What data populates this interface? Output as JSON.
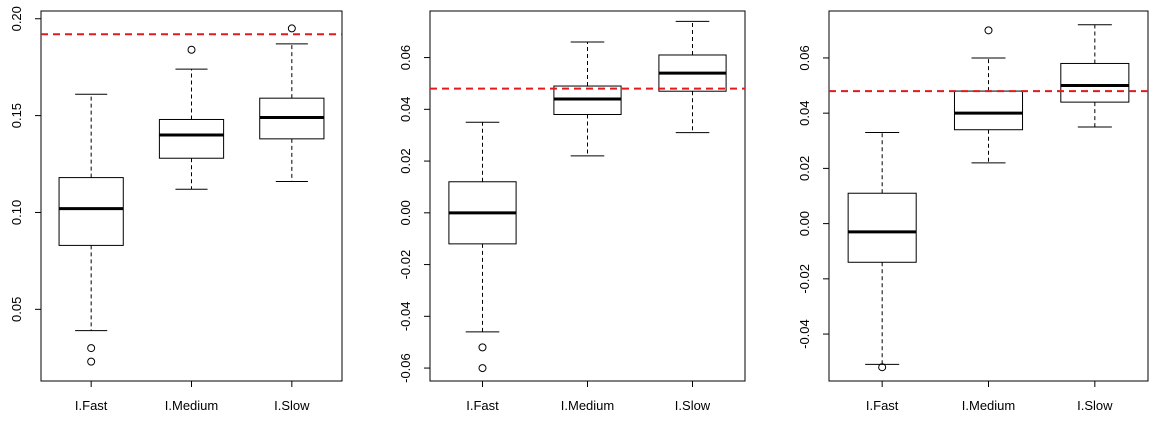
{
  "chart_data": [
    {
      "type": "boxplot",
      "categories": [
        "I.Fast",
        "I.Medium",
        "I.Slow"
      ],
      "ylim": [
        0.013,
        0.204
      ],
      "yticks": [
        0.05,
        0.1,
        0.15,
        0.2
      ],
      "ytick_labels": [
        "0.05",
        "0.10",
        "0.15",
        "0.20"
      ],
      "reference_line": 0.192,
      "boxes": [
        {
          "whisker_low": 0.039,
          "q1": 0.083,
          "median": 0.102,
          "q3": 0.118,
          "whisker_high": 0.161,
          "outliers": [
            0.03,
            0.023
          ]
        },
        {
          "whisker_low": 0.112,
          "q1": 0.128,
          "median": 0.14,
          "q3": 0.148,
          "whisker_high": 0.174,
          "outliers": [
            0.184
          ]
        },
        {
          "whisker_low": 0.116,
          "q1": 0.138,
          "median": 0.149,
          "q3": 0.159,
          "whisker_high": 0.187,
          "outliers": [
            0.195
          ]
        }
      ]
    },
    {
      "type": "boxplot",
      "categories": [
        "I.Fast",
        "I.Medium",
        "I.Slow"
      ],
      "ylim": [
        -0.065,
        0.078
      ],
      "yticks": [
        -0.06,
        -0.04,
        -0.02,
        0.0,
        0.02,
        0.04,
        0.06
      ],
      "ytick_labels": [
        "-0.06",
        "-0.04",
        "-0.02",
        "0.00",
        "0.02",
        "0.04",
        "0.06"
      ],
      "reference_line": 0.048,
      "boxes": [
        {
          "whisker_low": -0.046,
          "q1": -0.012,
          "median": 0.0,
          "q3": 0.012,
          "whisker_high": 0.035,
          "outliers": [
            -0.052,
            -0.06
          ]
        },
        {
          "whisker_low": 0.022,
          "q1": 0.038,
          "median": 0.044,
          "q3": 0.049,
          "whisker_high": 0.066,
          "outliers": []
        },
        {
          "whisker_low": 0.031,
          "q1": 0.047,
          "median": 0.054,
          "q3": 0.061,
          "whisker_high": 0.074,
          "outliers": []
        }
      ]
    },
    {
      "type": "boxplot",
      "categories": [
        "I.Fast",
        "I.Medium",
        "I.Slow"
      ],
      "ylim": [
        -0.057,
        0.077
      ],
      "yticks": [
        -0.04,
        -0.02,
        0.0,
        0.02,
        0.04,
        0.06
      ],
      "ytick_labels": [
        "-0.04",
        "-0.02",
        "0.00",
        "0.02",
        "0.04",
        "0.06"
      ],
      "reference_line": 0.048,
      "boxes": [
        {
          "whisker_low": -0.051,
          "q1": -0.014,
          "median": -0.003,
          "q3": 0.011,
          "whisker_high": 0.033,
          "outliers": [
            -0.052
          ]
        },
        {
          "whisker_low": 0.022,
          "q1": 0.034,
          "median": 0.04,
          "q3": 0.048,
          "whisker_high": 0.06,
          "outliers": [
            0.07
          ]
        },
        {
          "whisker_low": 0.035,
          "q1": 0.044,
          "median": 0.05,
          "q3": 0.058,
          "whisker_high": 0.072,
          "outliers": []
        }
      ]
    }
  ],
  "colors": {
    "axis": "#000000",
    "box_fill": "#ffffff",
    "reference_line": "#e31a1c"
  }
}
